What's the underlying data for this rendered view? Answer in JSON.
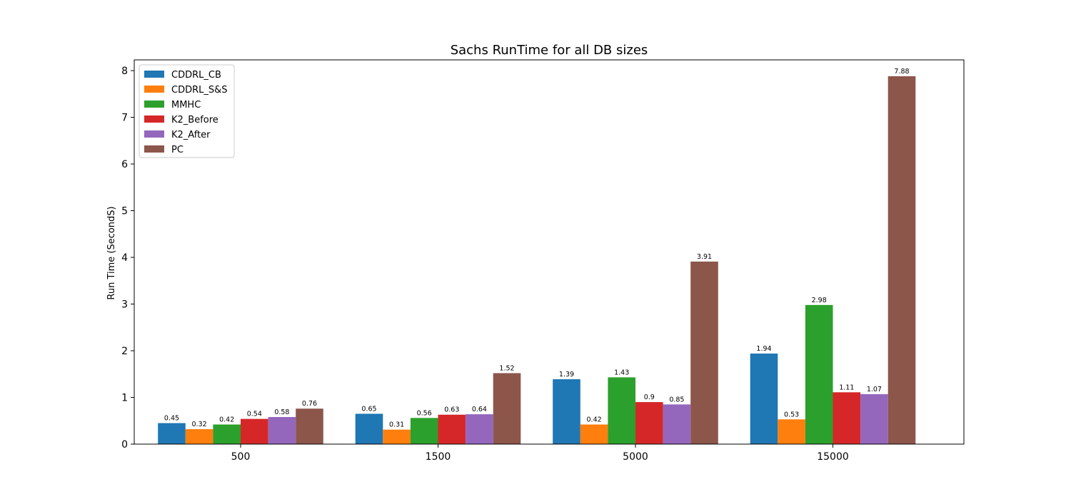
{
  "chart_data": {
    "type": "bar",
    "title": "Sachs RunTime for all DB sizes",
    "xlabel": "",
    "ylabel": "Run Time (SecondS)",
    "ylim": [
      0,
      8.23
    ],
    "yticks": [
      "0",
      "1",
      "2",
      "3",
      "4",
      "5",
      "6",
      "7",
      "8"
    ],
    "categories": [
      "500",
      "1500",
      "5000",
      "15000"
    ],
    "legend_position": "top-left",
    "grid": false,
    "series": [
      {
        "name": "CDDRL_CB",
        "color": "#1f77b4",
        "values": [
          0.45,
          0.65,
          1.39,
          1.94
        ],
        "labels": [
          "0.45",
          "0.65",
          "1.39",
          "1.94"
        ]
      },
      {
        "name": "CDDRL_S&S",
        "color": "#ff7f0e",
        "values": [
          0.32,
          0.31,
          0.42,
          0.53
        ],
        "labels": [
          "0.32",
          "0.31",
          "0.42",
          "0.53"
        ]
      },
      {
        "name": "MMHC",
        "color": "#2ca02c",
        "values": [
          0.42,
          0.56,
          1.43,
          2.98
        ],
        "labels": [
          "0.42",
          "0.56",
          "1.43",
          "2.98"
        ]
      },
      {
        "name": "K2_Before",
        "color": "#d62728",
        "values": [
          0.54,
          0.63,
          0.9,
          1.11
        ],
        "labels": [
          "0.54",
          "0.63",
          "0.9",
          "1.11"
        ]
      },
      {
        "name": "K2_After",
        "color": "#9467bd",
        "values": [
          0.58,
          0.64,
          0.85,
          1.07
        ],
        "labels": [
          "0.58",
          "0.64",
          "0.85",
          "1.07"
        ]
      },
      {
        "name": "PC",
        "color": "#8c564b",
        "values": [
          0.76,
          1.52,
          3.91,
          7.88
        ],
        "labels": [
          "0.76",
          "1.52",
          "3.91",
          "7.88"
        ]
      }
    ]
  }
}
